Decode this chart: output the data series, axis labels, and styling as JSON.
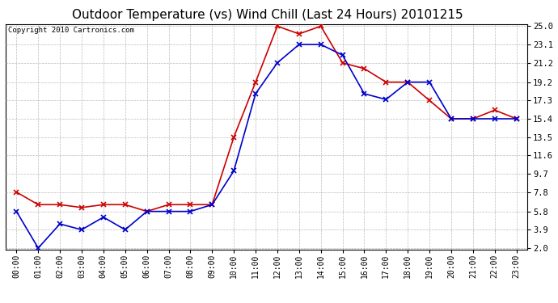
{
  "title": "Outdoor Temperature (vs) Wind Chill (Last 24 Hours) 20101215",
  "copyright": "Copyright 2010 Cartronics.com",
  "x_labels": [
    "00:00",
    "01:00",
    "02:00",
    "03:00",
    "04:00",
    "05:00",
    "06:00",
    "07:00",
    "08:00",
    "09:00",
    "10:00",
    "11:00",
    "12:00",
    "13:00",
    "14:00",
    "15:00",
    "16:00",
    "17:00",
    "18:00",
    "19:00",
    "20:00",
    "21:00",
    "22:00",
    "23:00"
  ],
  "temp_red": [
    7.8,
    6.5,
    6.5,
    6.2,
    6.5,
    6.5,
    5.8,
    6.5,
    6.5,
    6.5,
    13.5,
    19.2,
    25.0,
    24.2,
    25.0,
    21.2,
    20.6,
    19.2,
    19.2,
    17.3,
    15.4,
    15.4,
    16.3,
    15.4
  ],
  "wind_blue": [
    5.8,
    2.0,
    4.5,
    3.9,
    5.2,
    3.9,
    5.8,
    5.8,
    5.8,
    6.5,
    10.0,
    18.0,
    21.2,
    23.1,
    23.1,
    22.0,
    18.0,
    17.4,
    19.2,
    19.2,
    15.4,
    15.4,
    15.4,
    15.4
  ],
  "yticks": [
    2.0,
    3.9,
    5.8,
    7.8,
    9.7,
    11.6,
    13.5,
    15.4,
    17.3,
    19.2,
    21.2,
    23.1,
    25.0
  ],
  "ymin": 2.0,
  "ymax": 25.0,
  "bg_color": "#ffffff",
  "plot_bg": "#ffffff",
  "grid_color": "#bbbbbb",
  "red_color": "#cc0000",
  "blue_color": "#0000cc",
  "title_fontsize": 11,
  "copyright_fontsize": 6.5,
  "tick_fontsize": 7,
  "ytick_fontsize": 7.5
}
